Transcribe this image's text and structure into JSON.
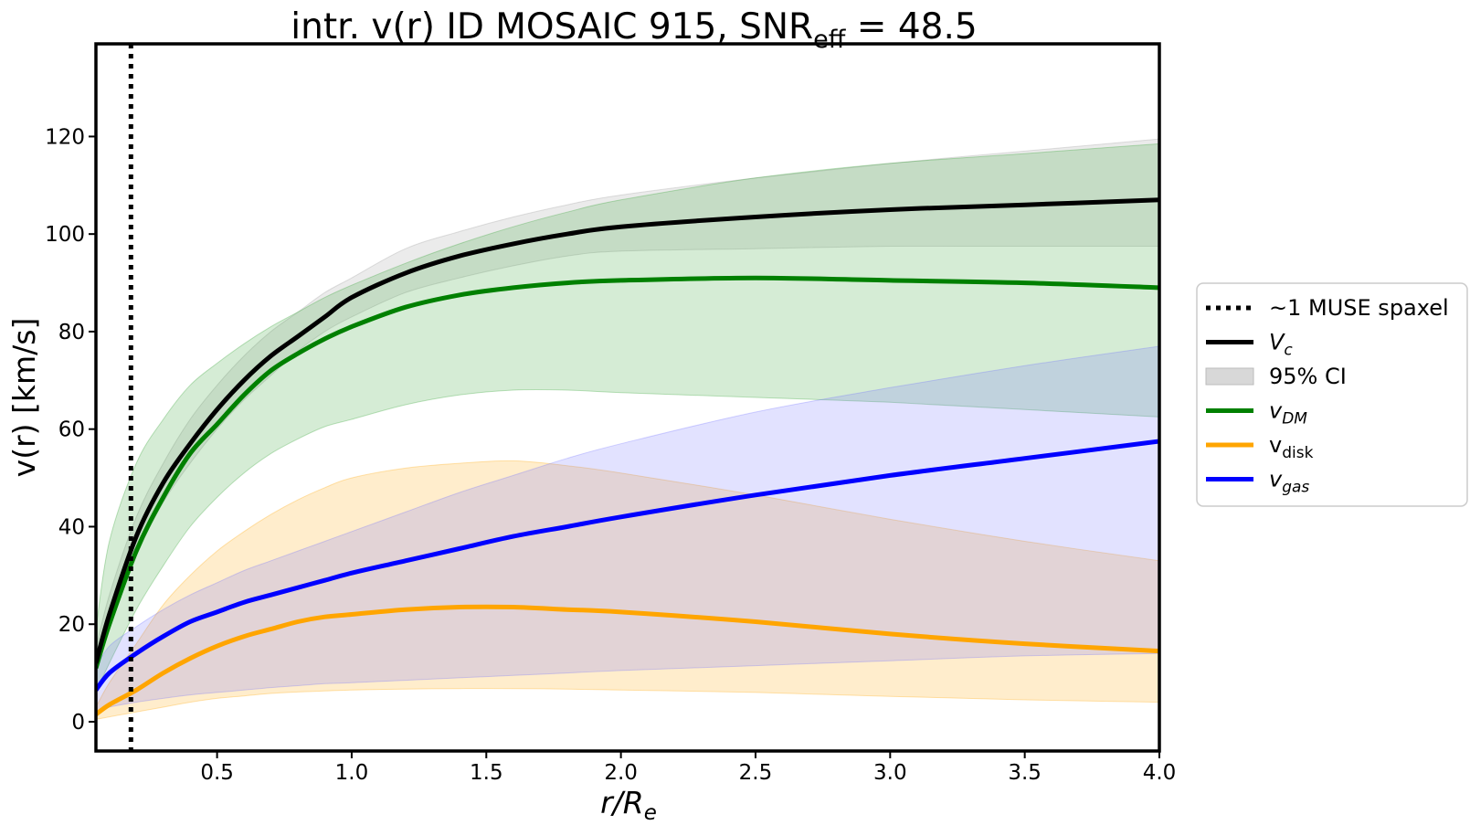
{
  "chart_data": {
    "type": "line",
    "title": {
      "prefix": "intr. v(r) ID MOSAIC 915, SNR",
      "subscript": "eff",
      "suffix": " = 48.5"
    },
    "xlabel": {
      "main": "r/R",
      "sub": "e"
    },
    "ylabel": "v(r) [km/s]",
    "xlim": [
      0.05,
      4.0
    ],
    "ylim": [
      -6,
      139
    ],
    "xticks": [
      0.5,
      1.0,
      1.5,
      2.0,
      2.5,
      3.0,
      3.5,
      4.0
    ],
    "xtick_labels": [
      "0.5",
      "1.0",
      "1.5",
      "2.0",
      "2.5",
      "3.0",
      "3.5",
      "4.0"
    ],
    "yticks": [
      0,
      20,
      40,
      60,
      80,
      100,
      120
    ],
    "ytick_labels": [
      "0",
      "20",
      "40",
      "60",
      "80",
      "100",
      "120"
    ],
    "muse_spaxel_x": 0.18,
    "x": [
      0.05,
      0.1,
      0.2,
      0.3,
      0.4,
      0.5,
      0.6,
      0.7,
      0.8,
      0.9,
      1.0,
      1.2,
      1.4,
      1.6,
      1.8,
      2.0,
      2.5,
      3.0,
      3.5,
      4.0
    ],
    "series": [
      {
        "name": "V_c",
        "color": "#000000",
        "band_color": "#999999",
        "values": [
          12,
          22,
          38,
          49,
          57,
          64,
          70,
          75,
          79,
          83,
          87,
          92,
          95.5,
          98,
          100,
          101.5,
          103.5,
          105,
          106,
          107
        ],
        "lower": [
          10,
          19,
          34,
          45,
          53,
          60,
          66,
          71,
          76,
          80,
          83,
          88,
          91,
          93.5,
          95.5,
          96.5,
          97,
          97.5,
          97.5,
          97.5
        ],
        "upper": [
          15,
          26,
          42,
          53,
          62,
          69,
          75,
          80,
          84,
          88,
          91,
          97,
          100.5,
          103.5,
          106,
          108,
          111.5,
          114.5,
          117,
          119.5
        ]
      },
      {
        "name": "v_DM",
        "color": "#008000",
        "band_color": "#2ca02c",
        "values": [
          11,
          20,
          35,
          46,
          55,
          61,
          67,
          72,
          75.5,
          78.5,
          81,
          85,
          87.5,
          89,
          90,
          90.5,
          91,
          90.5,
          90,
          89
        ],
        "lower": [
          6,
          12,
          23,
          32,
          40,
          46,
          51,
          55,
          58,
          60.5,
          62,
          65,
          67,
          68,
          68,
          67.5,
          66.5,
          65.5,
          64,
          62.5
        ],
        "upper": [
          19,
          37,
          53,
          62,
          69,
          73.5,
          77.5,
          81,
          84,
          87,
          89.5,
          94,
          98,
          101.5,
          104.5,
          107,
          111.5,
          114.5,
          116.5,
          118.5
        ]
      },
      {
        "name": "v_disk",
        "color": "#ffa500",
        "band_color": "#ffa500",
        "values": [
          1.5,
          3.5,
          6.5,
          10,
          13,
          15.5,
          17.5,
          19,
          20.5,
          21.5,
          22,
          23,
          23.5,
          23.5,
          23,
          22.5,
          20.5,
          18,
          16,
          14.5
        ],
        "lower": [
          0.5,
          1,
          2,
          3,
          4,
          4.8,
          5.3,
          5.8,
          6.1,
          6.3,
          6.5,
          6.7,
          6.8,
          6.8,
          6.7,
          6.5,
          6,
          5.2,
          4.5,
          4
        ],
        "upper": [
          3,
          8,
          16,
          24,
          30,
          35,
          39,
          42.5,
          45.5,
          48,
          50,
          52,
          53,
          53.5,
          52.5,
          51,
          46.5,
          41.5,
          37,
          33
        ]
      },
      {
        "name": "v_gas",
        "color": "#0000ff",
        "band_color": "#7070ff",
        "values": [
          6.5,
          10,
          14,
          17.5,
          20.5,
          22.5,
          24.5,
          26,
          27.5,
          29,
          30.5,
          33,
          35.5,
          38,
          40,
          42,
          46.5,
          50.5,
          54,
          57.5
        ],
        "lower": [
          2,
          3,
          4,
          4.8,
          5.5,
          6,
          6.5,
          7,
          7.4,
          7.8,
          8,
          8.5,
          9,
          9.5,
          10,
          10.5,
          11.5,
          12.5,
          13.5,
          14
        ],
        "upper": [
          11,
          15.5,
          19.5,
          23,
          26,
          28.5,
          31,
          33,
          35,
          37,
          39,
          43,
          47,
          50.5,
          54,
          57,
          63.5,
          68.5,
          73,
          77
        ]
      }
    ],
    "legend": {
      "position": "center-right-outside",
      "entries": [
        {
          "kind": "dotted",
          "color": "#000000",
          "main": "~1 MUSE spaxel",
          "sub": "",
          "italic": false
        },
        {
          "kind": "line",
          "color": "#000000",
          "main": "V",
          "sub": "c",
          "italic": true
        },
        {
          "kind": "patch",
          "color": "#d8d8d8",
          "main": "95% CI",
          "sub": "",
          "italic": false
        },
        {
          "kind": "line",
          "color": "#008000",
          "main": "v",
          "sub": "DM",
          "italic": true
        },
        {
          "kind": "line",
          "color": "#ffa500",
          "main": "v",
          "sub": "disk",
          "italic": false
        },
        {
          "kind": "line",
          "color": "#0000ff",
          "main": "v",
          "sub": "gas",
          "italic": true
        }
      ]
    }
  }
}
